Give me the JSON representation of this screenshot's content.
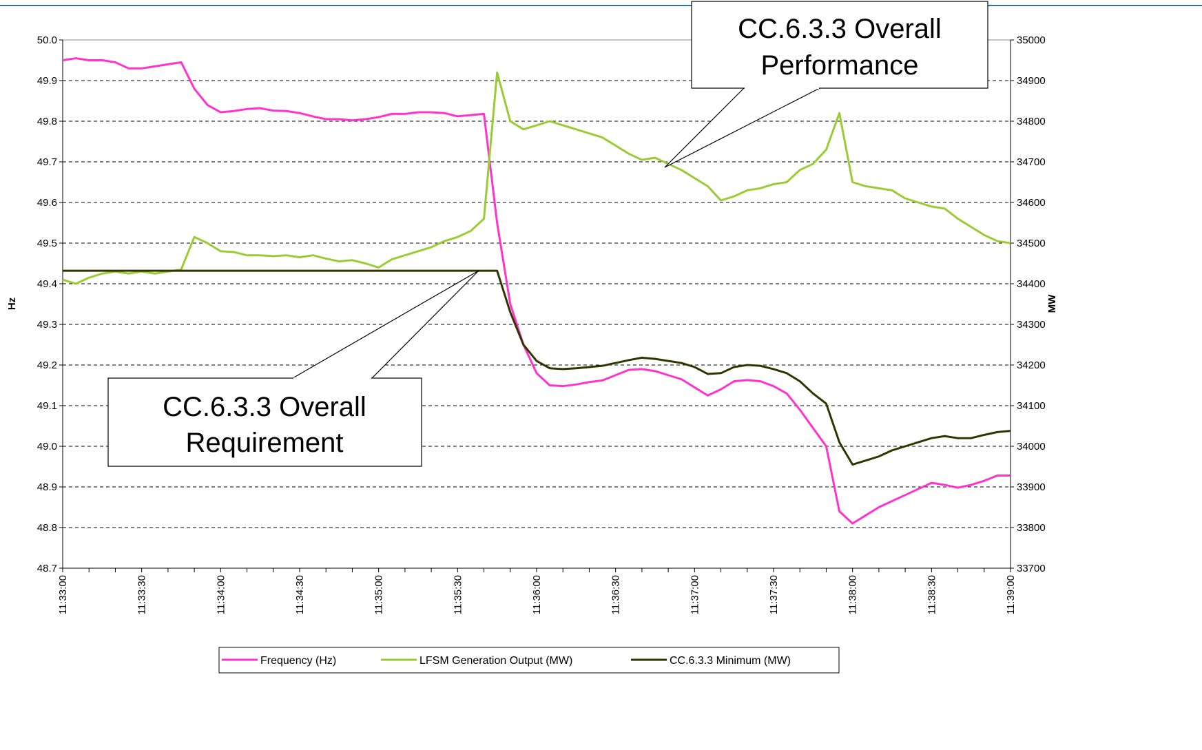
{
  "chart_data": {
    "type": "line",
    "x": [
      "11:33:00",
      "11:33:05",
      "11:33:10",
      "11:33:15",
      "11:33:20",
      "11:33:25",
      "11:33:30",
      "11:33:35",
      "11:33:40",
      "11:33:45",
      "11:33:50",
      "11:33:55",
      "11:34:00",
      "11:34:05",
      "11:34:10",
      "11:34:15",
      "11:34:20",
      "11:34:25",
      "11:34:30",
      "11:34:35",
      "11:34:40",
      "11:34:45",
      "11:34:50",
      "11:34:55",
      "11:35:00",
      "11:35:05",
      "11:35:10",
      "11:35:15",
      "11:35:20",
      "11:35:25",
      "11:35:30",
      "11:35:35",
      "11:35:40",
      "11:35:45",
      "11:35:50",
      "11:35:55",
      "11:36:00",
      "11:36:05",
      "11:36:10",
      "11:36:15",
      "11:36:20",
      "11:36:25",
      "11:36:30",
      "11:36:35",
      "11:36:40",
      "11:36:45",
      "11:36:50",
      "11:36:55",
      "11:37:00",
      "11:37:05",
      "11:37:10",
      "11:37:15",
      "11:37:20",
      "11:37:25",
      "11:37:30",
      "11:37:35",
      "11:37:40",
      "11:37:45",
      "11:37:50",
      "11:37:55",
      "11:38:00",
      "11:38:05",
      "11:38:10",
      "11:38:15",
      "11:38:20",
      "11:38:25",
      "11:38:30",
      "11:38:35",
      "11:38:40",
      "11:38:45",
      "11:38:50",
      "11:38:55",
      "11:39:00"
    ],
    "xlim": [
      "11:33:00",
      "11:39:00"
    ],
    "xticks": [
      "11:33:00",
      "11:33:30",
      "11:34:00",
      "11:34:30",
      "11:35:00",
      "11:35:30",
      "11:36:00",
      "11:36:30",
      "11:37:00",
      "11:37:30",
      "11:38:00",
      "11:38:30",
      "11:39:00"
    ],
    "ylabel": "Hz",
    "y2label": "MW",
    "ylim": [
      48.7,
      50.0
    ],
    "yticks": [
      48.7,
      48.8,
      48.9,
      {
        "value": 49.0,
        "label": "49.0"
      },
      49.1,
      49.2,
      49.3,
      49.4,
      49.5,
      49.6,
      49.7,
      49.8,
      49.9,
      {
        "value": 50.0,
        "label": "50.0"
      }
    ],
    "y2lim": [
      33700,
      35000
    ],
    "y2ticks": [
      33700,
      33800,
      33900,
      34000,
      34100,
      34200,
      34300,
      34400,
      34500,
      34600,
      34700,
      34800,
      34900,
      35000
    ],
    "grid": true,
    "legend": "bottom",
    "series": [
      {
        "name": "Frequency (Hz)",
        "color": "#ff33cc",
        "values": [
          49.95,
          49.955,
          49.95,
          49.95,
          49.945,
          49.93,
          49.93,
          49.935,
          49.94,
          49.945,
          49.88,
          49.84,
          49.822,
          49.825,
          49.83,
          49.832,
          49.826,
          49.825,
          49.82,
          49.812,
          49.805,
          49.805,
          49.802,
          49.805,
          49.81,
          49.818,
          49.818,
          49.822,
          49.822,
          49.82,
          49.812,
          49.815,
          49.818,
          49.55,
          49.35,
          49.25,
          49.18,
          49.15,
          49.148,
          49.152,
          49.158,
          49.162,
          49.175,
          49.188,
          49.19,
          49.185,
          49.175,
          49.165,
          49.145,
          49.125,
          49.14,
          49.16,
          49.163,
          49.16,
          49.148,
          49.13,
          49.09,
          49.045,
          49.0,
          48.84,
          48.81,
          48.83,
          48.85,
          48.865,
          48.88,
          48.895,
          48.91,
          48.905,
          48.898,
          48.905,
          48.915,
          48.928,
          48.928
        ]
      },
      {
        "name": "LFSM Generation Output (MW)",
        "color": "#99cc33",
        "axis": "y2",
        "values": [
          34410,
          34400,
          34415,
          34425,
          34430,
          34425,
          34430,
          34425,
          34430,
          34435,
          34515,
          34500,
          34480,
          34478,
          34470,
          34470,
          34468,
          34470,
          34465,
          34470,
          34462,
          34455,
          34458,
          34450,
          34440,
          34460,
          34470,
          34480,
          34490,
          34505,
          34515,
          34530,
          34560,
          34920,
          34800,
          34780,
          34790,
          34800,
          34790,
          34780,
          34770,
          34760,
          34740,
          34720,
          34705,
          34710,
          34695,
          34680,
          34660,
          34640,
          34605,
          34615,
          34630,
          34635,
          34645,
          34650,
          34680,
          34695,
          34730,
          34820,
          34650,
          34640,
          34635,
          34630,
          34610,
          34600,
          34590,
          34585,
          34560,
          34540,
          34520,
          34505,
          34500
        ]
      },
      {
        "name": "CC.6.3.3 Minimum (MW)",
        "color": "#333300",
        "axis": "y2",
        "values": [
          34432,
          34432,
          34432,
          34432,
          34432,
          34432,
          34432,
          34432,
          34432,
          34432,
          34432,
          34432,
          34432,
          34432,
          34432,
          34432,
          34432,
          34432,
          34432,
          34432,
          34432,
          34432,
          34432,
          34432,
          34432,
          34432,
          34432,
          34432,
          34432,
          34432,
          34432,
          34432,
          34432,
          34432,
          34330,
          34250,
          34210,
          34192,
          34190,
          34192,
          34195,
          34198,
          34205,
          34212,
          34218,
          34215,
          34210,
          34205,
          34195,
          34178,
          34180,
          34195,
          34200,
          34198,
          34190,
          34180,
          34160,
          34130,
          34105,
          34010,
          33955,
          33965,
          33975,
          33990,
          34000,
          34010,
          34020,
          34025,
          34020,
          34020,
          34028,
          34035,
          34038
        ]
      }
    ],
    "annotations": [
      {
        "lines": [
          "CC.6.3.3 Overall",
          "Performance"
        ]
      },
      {
        "lines": [
          "CC.6.3.3 Overall",
          "Requirement"
        ]
      }
    ]
  }
}
